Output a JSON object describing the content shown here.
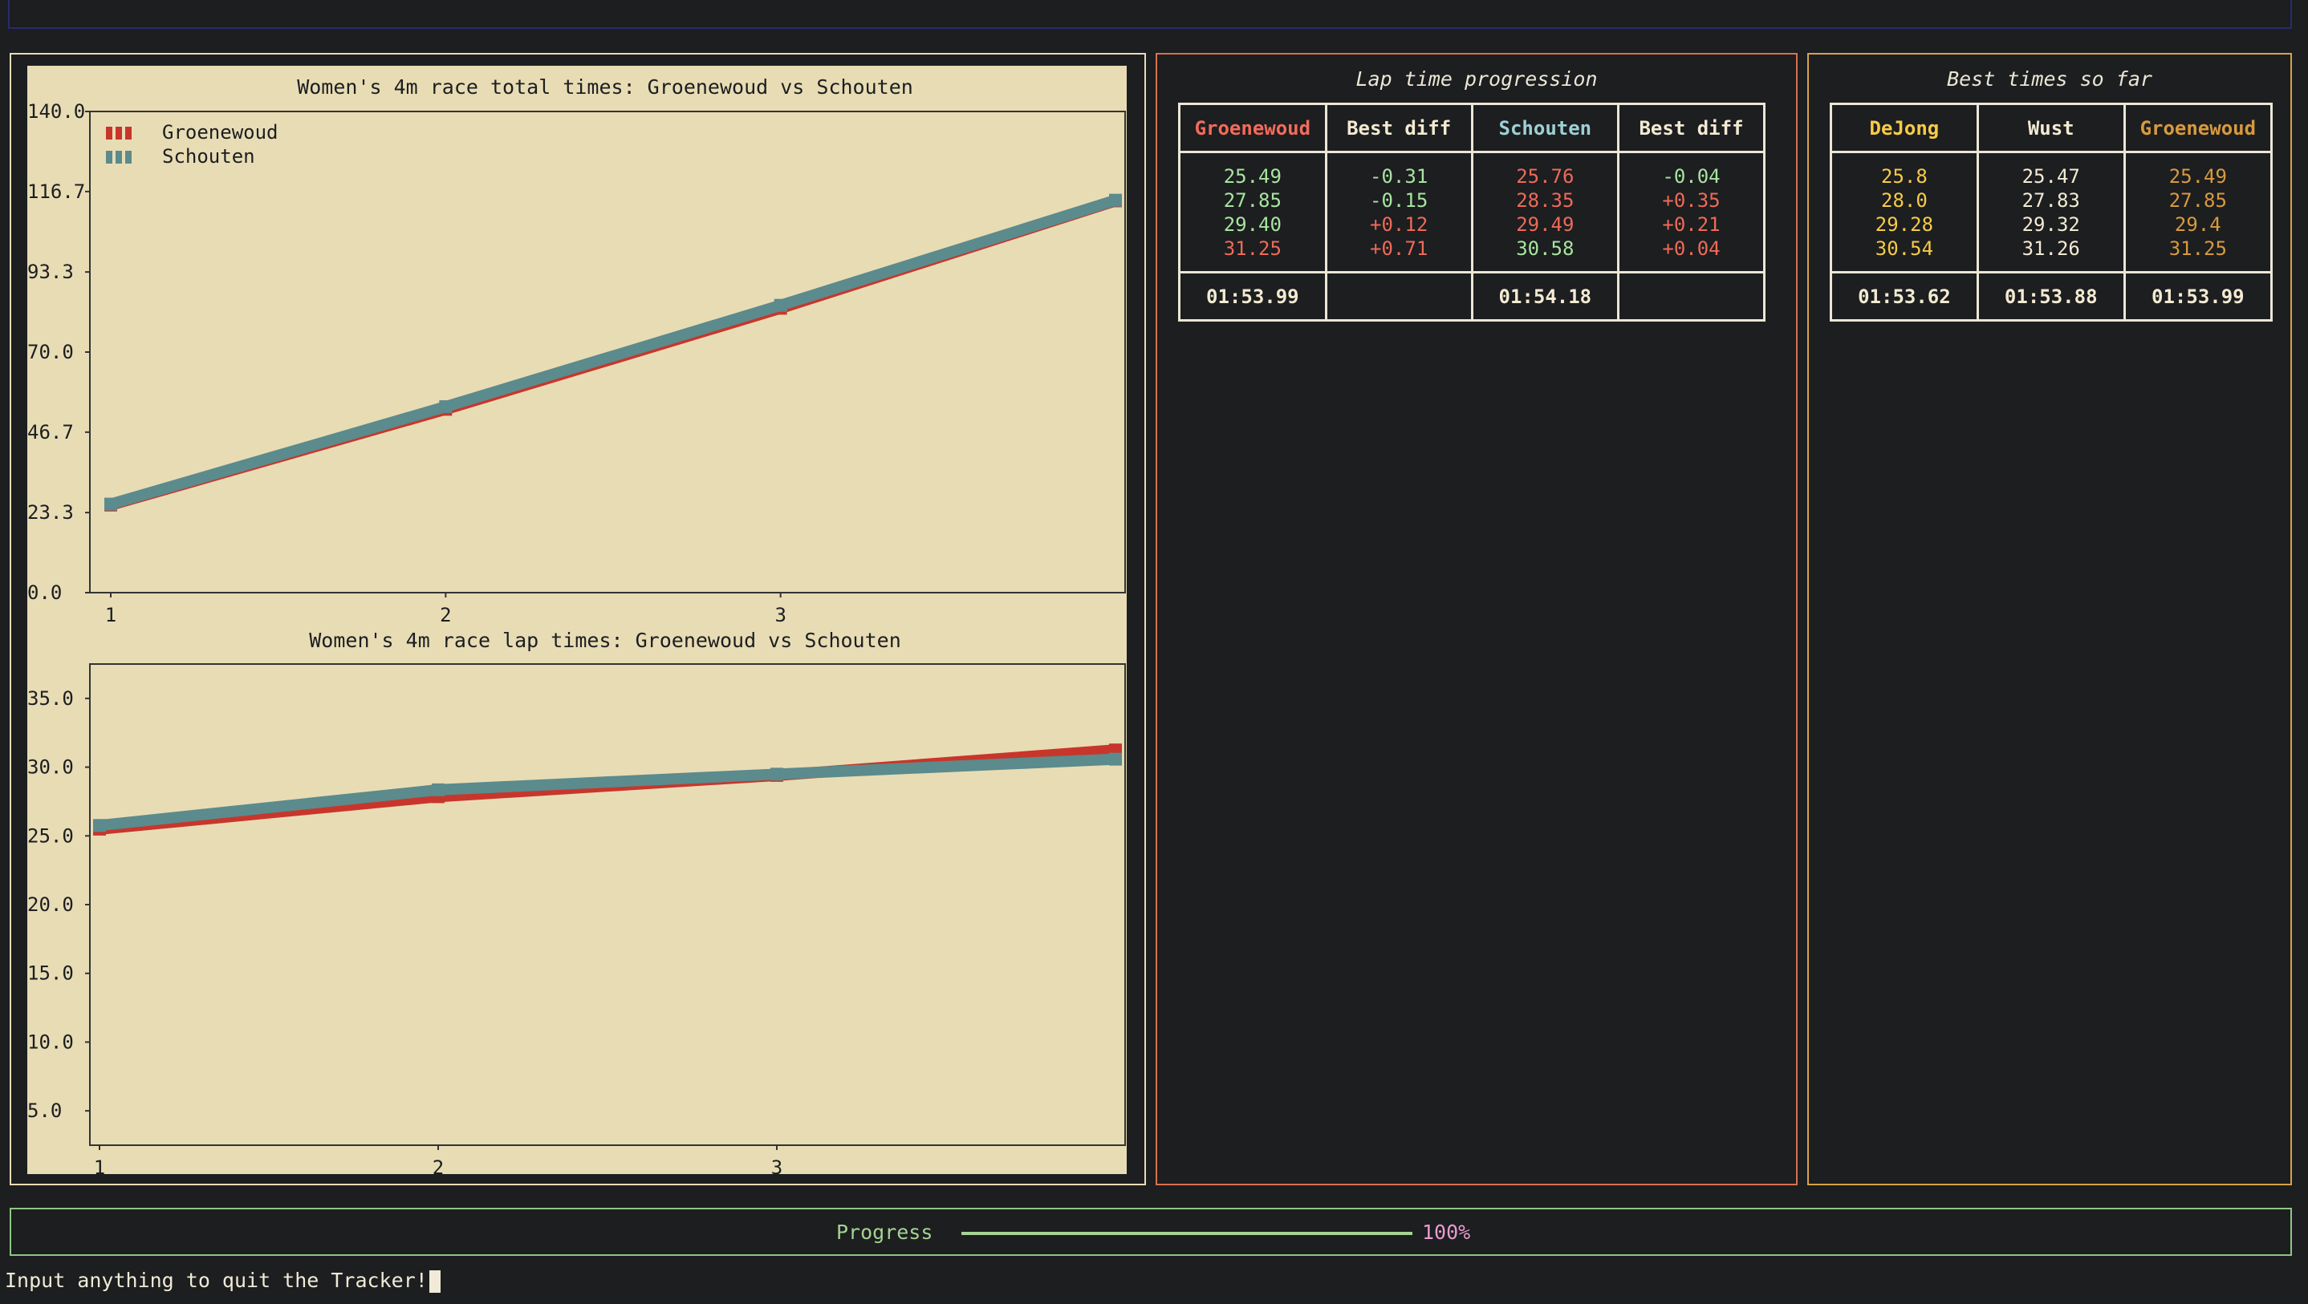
{
  "plots": {
    "total_title": "Women's 4m race total times: Groenewoud vs Schouten",
    "lap_title": "Women's 4m race lap times: Groenewoud vs Schouten"
  },
  "lap_progression": {
    "title": "Lap time progression",
    "headers": [
      "Groenewoud",
      "Best diff",
      "Schouten",
      "Best diff"
    ],
    "groenewoud": [
      "25.49",
      "27.85",
      "29.40",
      "31.25"
    ],
    "groenewoud_diff": [
      "-0.31",
      "-0.15",
      "+0.12",
      "+0.71"
    ],
    "schouten": [
      "25.76",
      "28.35",
      "29.49",
      "30.58"
    ],
    "schouten_diff": [
      "-0.04",
      "+0.35",
      "+0.21",
      "+0.04"
    ],
    "totals": [
      "01:53.99",
      "",
      "01:54.18",
      ""
    ]
  },
  "best_times": {
    "title": "Best times so far",
    "headers": [
      "DeJong",
      "Wust",
      "Groenewoud"
    ],
    "dejong": [
      "25.8",
      "28.0",
      "29.28",
      "30.54"
    ],
    "wust": [
      "25.47",
      "27.83",
      "29.32",
      "31.26"
    ],
    "groenewoud": [
      "25.49",
      "27.85",
      "29.4",
      "31.25"
    ],
    "totals": [
      "01:53.62",
      "01:53.88",
      "01:53.99"
    ]
  },
  "progress": {
    "label": "Progress",
    "percent_text": "100%",
    "value": 1.0
  },
  "command_line": "Input anything to quit the Tracker!",
  "colors": {
    "groenewoud": "#c8362b",
    "schouten": "#5b8b8c",
    "plot_bg": "#e8dcb5",
    "progress": "#a6d392"
  },
  "chart_data": [
    {
      "type": "line",
      "title": "Women's 4m race total times: Groenewoud vs Schouten",
      "legend": "top-left",
      "x_ticks": [
        "1",
        "2",
        "3"
      ],
      "y_ticks": [
        "0.0",
        "23.3",
        "46.7",
        "70.0",
        "93.3",
        "116.7",
        "140.0"
      ],
      "ylim": [
        0,
        140
      ],
      "series": [
        {
          "name": "Groenewoud",
          "x": [
            1,
            2,
            3,
            4
          ],
          "y": [
            25.49,
            53.34,
            82.74,
            113.99
          ]
        },
        {
          "name": "Schouten",
          "x": [
            1,
            2,
            3,
            4
          ],
          "y": [
            25.76,
            54.11,
            83.6,
            114.18
          ]
        }
      ]
    },
    {
      "type": "line",
      "title": "Women's 4m race lap times: Groenewoud vs Schouten",
      "x_ticks": [
        "1",
        "2",
        "3"
      ],
      "y_ticks": [
        "5.0",
        "10.0",
        "15.0",
        "20.0",
        "25.0",
        "30.0",
        "35.0"
      ],
      "ylim": [
        2.5,
        37.5
      ],
      "series": [
        {
          "name": "Groenewoud",
          "x": [
            1,
            2,
            3,
            4
          ],
          "y": [
            25.49,
            27.85,
            29.4,
            31.25
          ]
        },
        {
          "name": "Schouten",
          "x": [
            1,
            2,
            3,
            4
          ],
          "y": [
            25.76,
            28.35,
            29.49,
            30.58
          ]
        }
      ]
    }
  ]
}
